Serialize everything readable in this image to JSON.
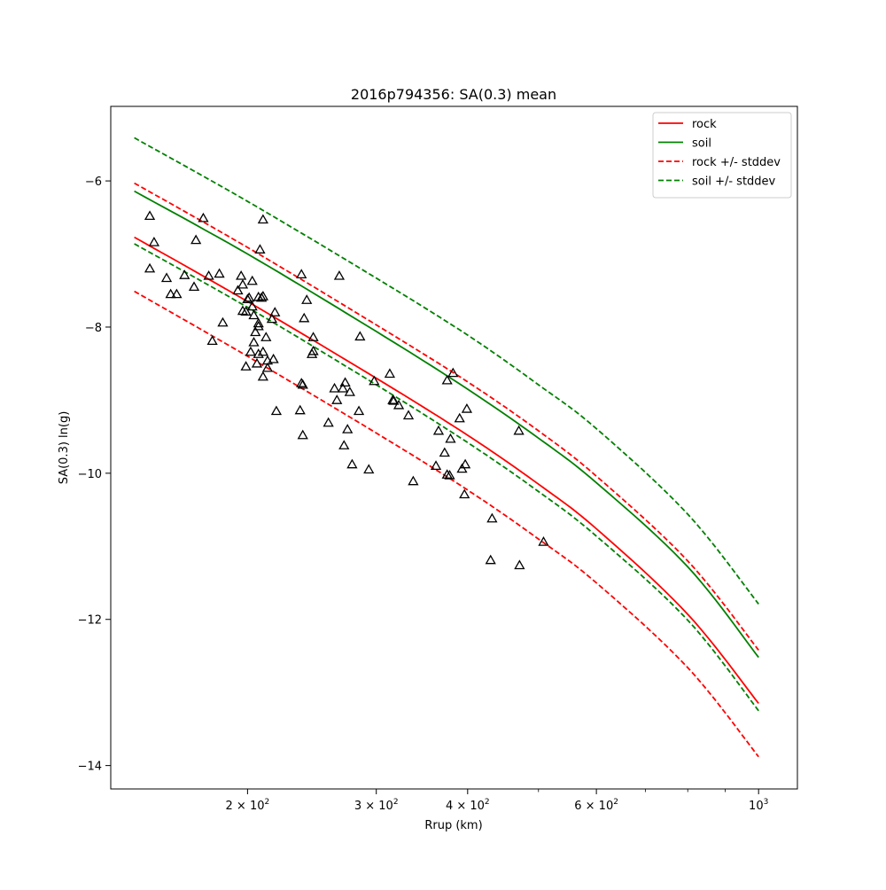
{
  "chart_data": {
    "type": "line",
    "title": "2016p794356: SA(0.3) mean",
    "xlabel": "Rrup (km)",
    "ylabel": "SA(0.3) ln(g)",
    "xscale": "log",
    "xlim": [
      130,
      1130
    ],
    "ylim": [
      -14.32,
      -4.98
    ],
    "grid": false,
    "legend_position": "top-right",
    "x_ticks": [
      {
        "value": 200,
        "base": "2 × 10",
        "exp": "2"
      },
      {
        "value": 300,
        "base": "3 × 10",
        "exp": "2"
      },
      {
        "value": 400,
        "base": "4 × 10",
        "exp": "2"
      },
      {
        "value": 600,
        "base": "6 × 10",
        "exp": "2"
      },
      {
        "value": 1000,
        "base": "10",
        "exp": "3"
      }
    ],
    "x_minor_ticks": [
      500,
      700,
      800,
      900
    ],
    "y_ticks": [
      {
        "value": -6,
        "label": "−6"
      },
      {
        "value": -8,
        "label": "−8"
      },
      {
        "value": -10,
        "label": "−10"
      },
      {
        "value": -12,
        "label": "−12"
      },
      {
        "value": -14,
        "label": "−14"
      }
    ],
    "series": [
      {
        "name": "rock",
        "color": "#ff0000",
        "style": "solid",
        "x": [
          140,
          200,
          300,
          400,
          500,
          600,
          800,
          1000
        ],
        "y": [
          -6.77,
          -7.65,
          -8.7,
          -9.48,
          -10.15,
          -10.76,
          -11.93,
          -13.15
        ]
      },
      {
        "name": "soil",
        "color": "#008000",
        "style": "solid",
        "x": [
          140,
          200,
          300,
          400,
          500,
          600,
          800,
          1000
        ],
        "y": [
          -6.14,
          -7.0,
          -8.06,
          -8.85,
          -9.52,
          -10.13,
          -11.28,
          -12.52
        ]
      },
      {
        "name": "rock +/- stddev",
        "color": "#ff0000",
        "style": "dashed",
        "x": [
          140,
          200,
          300,
          400,
          500,
          600,
          800,
          1000
        ],
        "y": [
          -6.03,
          -6.91,
          -7.97,
          -8.75,
          -9.42,
          -10.04,
          -11.2,
          -12.42
        ]
      },
      {
        "name": "",
        "color": "#ff0000",
        "style": "dashed",
        "legend": false,
        "x": [
          140,
          200,
          300,
          400,
          500,
          600,
          800,
          1000
        ],
        "y": [
          -7.51,
          -8.4,
          -9.45,
          -10.23,
          -10.9,
          -11.5,
          -12.66,
          -13.88
        ]
      },
      {
        "name": "soil +/- stddev",
        "color": "#008000",
        "style": "dashed",
        "x": [
          140,
          200,
          300,
          400,
          500,
          600,
          800,
          1000
        ],
        "y": [
          -5.41,
          -6.28,
          -7.33,
          -8.11,
          -8.79,
          -9.39,
          -10.56,
          -11.79
        ]
      },
      {
        "name": "",
        "color": "#008000",
        "style": "dashed",
        "legend": false,
        "x": [
          140,
          200,
          300,
          400,
          500,
          600,
          800,
          1000
        ],
        "y": [
          -6.86,
          -7.73,
          -8.79,
          -9.58,
          -10.25,
          -10.86,
          -12.01,
          -13.25
        ]
      }
    ],
    "observations": {
      "marker": "triangle",
      "color": "#000000",
      "points": [
        [
          147,
          -6.48
        ],
        [
          149,
          -6.84
        ],
        [
          147,
          -7.2
        ],
        [
          155,
          -7.33
        ],
        [
          157,
          -7.55
        ],
        [
          160,
          -7.55
        ],
        [
          164,
          -7.29
        ],
        [
          169,
          -7.45
        ],
        [
          170,
          -6.81
        ],
        [
          174,
          -6.51
        ],
        [
          177,
          -7.3
        ],
        [
          179,
          -8.19
        ],
        [
          183,
          -7.27
        ],
        [
          185,
          -7.94
        ],
        [
          194,
          -7.5
        ],
        [
          196,
          -7.3
        ],
        [
          197,
          -7.42
        ],
        [
          197,
          -7.78
        ],
        [
          199,
          -7.79
        ],
        [
          199,
          -8.54
        ],
        [
          200,
          -7.62
        ],
        [
          201,
          -7.6
        ],
        [
          202,
          -8.34
        ],
        [
          203,
          -7.72
        ],
        [
          203,
          -7.37
        ],
        [
          204,
          -7.84
        ],
        [
          204,
          -8.21
        ],
        [
          205,
          -8.07
        ],
        [
          206,
          -8.5
        ],
        [
          207,
          -7.99
        ],
        [
          207,
          -7.59
        ],
        [
          207,
          -7.95
        ],
        [
          207,
          -8.37
        ],
        [
          208,
          -6.94
        ],
        [
          209,
          -7.6
        ],
        [
          210,
          -7.58
        ],
        [
          210,
          -6.53
        ],
        [
          210,
          -8.34
        ],
        [
          210,
          -8.68
        ],
        [
          212,
          -8.14
        ],
        [
          213,
          -8.46
        ],
        [
          213,
          -8.56
        ],
        [
          216,
          -7.89
        ],
        [
          217,
          -8.44
        ],
        [
          218,
          -7.8
        ],
        [
          219,
          -9.15
        ],
        [
          236,
          -9.14
        ],
        [
          237,
          -7.28
        ],
        [
          237,
          -8.77
        ],
        [
          238,
          -8.79
        ],
        [
          238,
          -9.48
        ],
        [
          239,
          -7.88
        ],
        [
          241,
          -7.63
        ],
        [
          245,
          -8.37
        ],
        [
          246,
          -8.14
        ],
        [
          246,
          -8.33
        ],
        [
          258,
          -9.31
        ],
        [
          263,
          -8.84
        ],
        [
          265,
          -9.0
        ],
        [
          267,
          -7.3
        ],
        [
          270,
          -8.84
        ],
        [
          271,
          -9.62
        ],
        [
          272,
          -8.76
        ],
        [
          274,
          -9.4
        ],
        [
          276,
          -8.89
        ],
        [
          278,
          -9.88
        ],
        [
          284,
          -9.15
        ],
        [
          285,
          -8.13
        ],
        [
          293,
          -9.95
        ],
        [
          298,
          -8.74
        ],
        [
          313,
          -8.64
        ],
        [
          316,
          -9.0
        ],
        [
          317,
          -9.01
        ],
        [
          322,
          -9.07
        ],
        [
          332,
          -9.21
        ],
        [
          337,
          -10.11
        ],
        [
          362,
          -9.9
        ],
        [
          365,
          -9.42
        ],
        [
          372,
          -9.72
        ],
        [
          375,
          -8.73
        ],
        [
          375,
          -10.02
        ],
        [
          378,
          -10.03
        ],
        [
          379,
          -9.53
        ],
        [
          382,
          -8.63
        ],
        [
          390,
          -9.25
        ],
        [
          393,
          -9.94
        ],
        [
          396,
          -10.29
        ],
        [
          397,
          -9.88
        ],
        [
          399,
          -9.12
        ],
        [
          430,
          -11.19
        ],
        [
          432,
          -10.62
        ],
        [
          470,
          -9.42
        ],
        [
          471,
          -11.26
        ],
        [
          508,
          -10.94
        ]
      ]
    }
  }
}
